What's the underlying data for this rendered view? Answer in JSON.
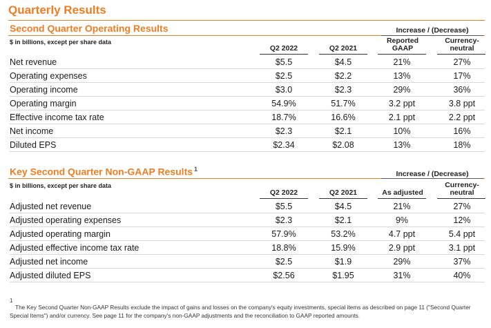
{
  "page_title": "Quarterly Results",
  "section1": {
    "title": "Second Quarter Operating Results",
    "units": "$ in billions, except per share data",
    "group_header": "Increase / (Decrease)",
    "columns": [
      "Q2 2022",
      "Q2 2021",
      "Reported GAAP",
      "Currency-neutral"
    ],
    "rows": [
      {
        "label": "Net revenue",
        "q2_2022": "$5.5",
        "q2_2021": "$4.5",
        "reported": "21%",
        "currency_neutral": "27%"
      },
      {
        "label": "Operating expenses",
        "q2_2022": "$2.5",
        "q2_2021": "$2.2",
        "reported": "13%",
        "currency_neutral": "17%"
      },
      {
        "label": "Operating income",
        "q2_2022": "$3.0",
        "q2_2021": "$2.3",
        "reported": "29%",
        "currency_neutral": "36%"
      },
      {
        "label": "Operating margin",
        "q2_2022": "54.9%",
        "q2_2021": "51.7%",
        "reported": "3.2 ppt",
        "currency_neutral": "3.8 ppt"
      },
      {
        "label": "Effective income tax rate",
        "q2_2022": "18.7%",
        "q2_2021": "16.6%",
        "reported": "2.1 ppt",
        "currency_neutral": "2.2 ppt"
      },
      {
        "label": "Net income",
        "q2_2022": "$2.3",
        "q2_2021": "$2.1",
        "reported": "10%",
        "currency_neutral": "16%"
      },
      {
        "label": "Diluted EPS",
        "q2_2022": "$2.34",
        "q2_2021": "$2.08",
        "reported": "13%",
        "currency_neutral": "18%"
      }
    ]
  },
  "section2": {
    "title": "Key Second Quarter Non-GAAP Results",
    "footnote_ref": "1",
    "units": "$ in billions, except per share data",
    "group_header": "Increase / (Decrease)",
    "columns": [
      "Q2 2022",
      "Q2 2021",
      "As adjusted",
      "Currency-neutral"
    ],
    "rows": [
      {
        "label": "Adjusted net revenue",
        "q2_2022": "$5.5",
        "q2_2021": "$4.5",
        "adjusted": "21%",
        "currency_neutral": "27%"
      },
      {
        "label": "Adjusted operating expenses",
        "q2_2022": "$2.3",
        "q2_2021": "$2.1",
        "adjusted": "9%",
        "currency_neutral": "12%"
      },
      {
        "label": "Adjusted operating margin",
        "q2_2022": "57.9%",
        "q2_2021": "53.2%",
        "adjusted": "4.7 ppt",
        "currency_neutral": "5.4 ppt"
      },
      {
        "label": "Adjusted effective income tax rate",
        "q2_2022": "18.8%",
        "q2_2021": "15.9%",
        "adjusted": "2.9 ppt",
        "currency_neutral": "3.1 ppt"
      },
      {
        "label": "Adjusted net income",
        "q2_2022": "$2.5",
        "q2_2021": "$1.9",
        "adjusted": "29%",
        "currency_neutral": "37%"
      },
      {
        "label": "Adjusted diluted EPS",
        "q2_2022": "$2.56",
        "q2_2021": "$1.95",
        "adjusted": "31%",
        "currency_neutral": "40%"
      }
    ]
  },
  "footnote": {
    "mark": "1",
    "text": "The Key Second Quarter Non-GAAP Results exclude the impact of gains and losses on the company's equity investments, special items as described on page 11 (\"Second Quarter Special Items\") and/or currency.  See page 11 for the company's non-GAAP adjustments and the reconciliation to GAAP reported amounts."
  }
}
